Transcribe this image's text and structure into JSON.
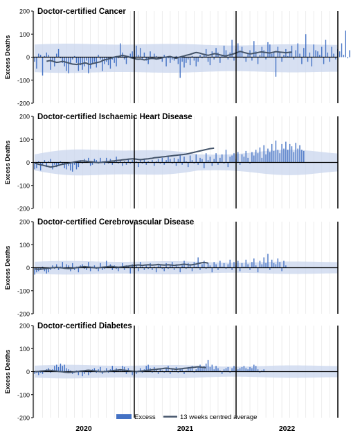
{
  "chart_data": {
    "type": "bar",
    "ylabel": "Excess Deaths",
    "ylim": [
      -200,
      200
    ],
    "yticks": [
      200,
      100,
      0,
      -100,
      -200
    ],
    "x_unit": "week index from first ISO week of 2020 (weeks 1–170 shown)",
    "year_labels": [
      "2020",
      "2021",
      "2022"
    ],
    "legend": {
      "position": "bottom",
      "bar_label": "Excess",
      "line_label": "13 weeks centred average"
    },
    "colors": {
      "bar": "#4472C4",
      "line": "#44546A",
      "band": "#C9D6EE"
    },
    "panels": [
      {
        "title": "Doctor-certified Cancer",
        "series": [
          {
            "name": "Excess",
            "values": [
              -20,
              -50,
              15,
              10,
              -80,
              5,
              20,
              10,
              -55,
              -20,
              -40,
              15,
              35,
              -5,
              -25,
              -40,
              -60,
              -70,
              -30,
              -10,
              5,
              -25,
              -60,
              -35,
              -55,
              -40,
              -15,
              -70,
              -50,
              -30,
              -20,
              -45,
              10,
              -10,
              -60,
              -30,
              -20,
              -35,
              -50,
              -10,
              -25,
              -40,
              -5,
              60,
              20,
              -10,
              -30,
              5,
              15,
              25,
              30,
              50,
              10,
              40,
              -10,
              20,
              -15,
              -30,
              25,
              -5,
              15,
              5,
              -10,
              0,
              -20,
              10,
              -40,
              -5,
              -25,
              -10,
              -15,
              5,
              -30,
              -90,
              -20,
              -45,
              -25,
              -10,
              -35,
              5,
              -15,
              -40,
              -20,
              10,
              -5,
              15,
              35,
              -20,
              -35,
              25,
              -10,
              40,
              20,
              -25,
              10,
              50,
              30,
              -10,
              20,
              75,
              -15,
              35,
              60,
              25,
              45,
              -5,
              -20,
              15,
              30,
              -15,
              70,
              25,
              -30,
              10,
              45,
              30,
              -10,
              65,
              55,
              15,
              20,
              -85,
              45,
              20,
              -20,
              10,
              35,
              5,
              25,
              50,
              -10,
              30,
              60,
              15,
              -30,
              40,
              100,
              -20,
              20,
              -40,
              55,
              30,
              25,
              10,
              45,
              -30,
              75,
              20,
              -20,
              45,
              15,
              -10,
              35,
              25,
              60,
              10,
              115,
              -5,
              30,
              20,
              50,
              65,
              -35,
              15,
              20,
              70,
              40
            ]
          },
          {
            "name": "13 weeks centred average",
            "values": [
              -18,
              -16,
              -15,
              -17,
              -20,
              -23,
              -22,
              -20,
              -18,
              -20,
              -23,
              -25,
              -28,
              -30,
              -31,
              -32,
              -30,
              -30,
              -28,
              -25,
              -26,
              -30,
              -32,
              -28,
              -26,
              -24,
              -22,
              -20,
              -15,
              -12,
              -10,
              -8,
              -5,
              -2,
              0,
              2,
              3,
              5,
              8,
              6,
              4,
              2,
              -2,
              -4,
              -6,
              -8,
              -9,
              -8,
              -10,
              -12,
              -10,
              -8,
              -6,
              -5,
              -6,
              -8,
              -7,
              -5,
              -3,
              -1,
              0,
              2,
              3,
              0,
              -3,
              -5,
              -2,
              1,
              3,
              5,
              8,
              10,
              12,
              15,
              18,
              20,
              19,
              17,
              14,
              12,
              10,
              8,
              10,
              12,
              15,
              14,
              12,
              10,
              8,
              6,
              5,
              8,
              10,
              12,
              15,
              18,
              22,
              25,
              23,
              20,
              18,
              16,
              14,
              15,
              17,
              18,
              20,
              22,
              23,
              21,
              20,
              19,
              18,
              20,
              22,
              24,
              23,
              22,
              21,
              20,
              19,
              20,
              21,
              22
            ]
          }
        ]
      },
      {
        "title": "Doctor-certified Ischaemic Heart Disease",
        "series": [
          {
            "name": "Excess",
            "values": [
              -30,
              -25,
              5,
              -35,
              -15,
              10,
              -20,
              5,
              15,
              -30,
              -10,
              -20,
              -15,
              5,
              -10,
              -25,
              -30,
              -15,
              -35,
              -40,
              -10,
              -30,
              -20,
              10,
              -5,
              15,
              5,
              20,
              -15,
              -10,
              15,
              10,
              -5,
              20,
              5,
              -10,
              20,
              -5,
              15,
              -10,
              5,
              25,
              -5,
              10,
              -15,
              5,
              -10,
              15,
              -5,
              10,
              -5,
              5,
              -20,
              10,
              -5,
              15,
              -10,
              5,
              0,
              10,
              -15,
              5,
              15,
              -5,
              20,
              -10,
              10,
              25,
              15,
              -5,
              20,
              -15,
              15,
              30,
              -10,
              25,
              5,
              -20,
              30,
              10,
              -5,
              35,
              -10,
              20,
              15,
              -25,
              40,
              10,
              25,
              -15,
              15,
              40,
              -10,
              20,
              35,
              -5,
              55,
              -20,
              25,
              30,
              40,
              15,
              45,
              -10,
              35,
              25,
              50,
              20,
              -5,
              45,
              30,
              55,
              40,
              65,
              20,
              75,
              35,
              60,
              45,
              80,
              50,
              95,
              55,
              40,
              80,
              60,
              90,
              55,
              80,
              70,
              45,
              85,
              60,
              75,
              55,
              50
            ]
          },
          {
            "name": "13 weeks centred average",
            "values": [
              -3,
              -5,
              -8,
              -10,
              -12,
              -14,
              -16,
              -18,
              -20,
              -19,
              -17,
              -15,
              -13,
              -10,
              -8,
              -6,
              -5,
              -4,
              -2,
              0,
              2,
              4,
              5,
              6,
              7,
              6,
              5,
              4,
              3,
              2,
              1,
              0,
              -1,
              0,
              1,
              2,
              3,
              4,
              5,
              6,
              7,
              8,
              9,
              10,
              11,
              12,
              13,
              14,
              15,
              16,
              15,
              14,
              13,
              12,
              13,
              14,
              15,
              16,
              17,
              18,
              20,
              21,
              22,
              23,
              24,
              25,
              26,
              27,
              28,
              29,
              30,
              31,
              32,
              33,
              34,
              35,
              36,
              38,
              40,
              42,
              44,
              46,
              48,
              50,
              52,
              54,
              56,
              58,
              60,
              61,
              62
            ]
          }
        ]
      },
      {
        "title": "Doctor-certified Cerebrovascular Disease",
        "series": [
          {
            "name": "Excess",
            "values": [
              -30,
              -20,
              -15,
              -10,
              5,
              -15,
              -25,
              -20,
              -10,
              10,
              -5,
              15,
              -10,
              5,
              25,
              -5,
              15,
              10,
              -15,
              20,
              -10,
              5,
              -20,
              10,
              15,
              -5,
              -10,
              25,
              -15,
              5,
              10,
              -5,
              -15,
              20,
              -10,
              -5,
              30,
              5,
              15,
              -10,
              10,
              -5,
              -15,
              5,
              20,
              -10,
              10,
              5,
              -25,
              15,
              -5,
              10,
              -15,
              25,
              5,
              -10,
              15,
              -5,
              20,
              -10,
              5,
              -20,
              10,
              15,
              -5,
              -15,
              20,
              -5,
              10,
              25,
              -10,
              15,
              5,
              -20,
              10,
              30,
              -5,
              20,
              10,
              -15,
              25,
              5,
              45,
              -10,
              15,
              30,
              -5,
              20,
              10,
              -20,
              25,
              15,
              -10,
              30,
              5,
              20,
              -5,
              15,
              35,
              -10,
              25,
              10,
              30,
              -15,
              20,
              5,
              35,
              15,
              -10,
              25,
              40,
              10,
              -20,
              30,
              15,
              45,
              20,
              60,
              -10,
              35,
              20,
              15,
              40,
              25,
              -15,
              30,
              10
            ]
          },
          {
            "name": "13 weeks centred average",
            "values": [
              -5,
              -6,
              -7,
              -6,
              -5,
              -4,
              -3,
              -2,
              -1,
              0,
              1,
              2,
              1,
              0,
              -1,
              -2,
              -3,
              -4,
              -3,
              -2,
              -1,
              0,
              2,
              3,
              4,
              5,
              4,
              3,
              2,
              1,
              0,
              -1,
              0,
              1,
              2,
              3,
              4,
              5,
              6,
              5,
              4,
              3,
              2,
              3,
              4,
              5,
              6,
              7,
              8,
              9,
              10,
              11,
              12,
              11,
              10,
              11,
              12,
              13,
              12,
              11,
              12,
              13,
              14,
              13,
              12,
              11,
              12,
              13,
              12,
              11,
              10,
              11,
              12,
              13,
              14,
              15,
              14,
              13,
              12,
              13,
              14,
              16,
              18,
              20,
              22,
              23,
              22,
              20
            ]
          }
        ]
      },
      {
        "title": "Doctor-certified Diabetes",
        "series": [
          {
            "name": "Excess",
            "values": [
              -10,
              -5,
              -15,
              -5,
              -10,
              5,
              10,
              15,
              -5,
              10,
              25,
              30,
              20,
              35,
              25,
              30,
              15,
              10,
              5,
              -10,
              -5,
              5,
              -15,
              5,
              -20,
              -10,
              5,
              -15,
              -5,
              10,
              15,
              -5,
              10,
              20,
              -10,
              5,
              15,
              -5,
              10,
              25,
              -5,
              15,
              10,
              5,
              25,
              20,
              -10,
              15,
              5,
              -15,
              -20,
              -10,
              5,
              15,
              -5,
              10,
              25,
              30,
              15,
              -5,
              20,
              10,
              -10,
              15,
              5,
              -5,
              15,
              25,
              -10,
              10,
              5,
              20,
              -5,
              15,
              10,
              -10,
              5,
              20,
              15,
              25,
              -5,
              10,
              20,
              30,
              15,
              25,
              35,
              50,
              20,
              30,
              10,
              25,
              15,
              5,
              -10,
              10,
              15,
              20,
              -5,
              15,
              25,
              20,
              10,
              15,
              20,
              25,
              15,
              10,
              20,
              15,
              30,
              25,
              10,
              -5,
              5,
              10
            ]
          },
          {
            "name": "13 weeks centred average",
            "values": [
              0,
              0,
              1,
              2,
              3,
              4,
              5,
              6,
              5,
              4,
              3,
              2,
              1,
              0,
              -1,
              -2,
              -3,
              -4,
              -3,
              -2,
              -1,
              0,
              1,
              2,
              3,
              4,
              5,
              6,
              5,
              4,
              3,
              2,
              1,
              0,
              -1,
              0,
              1,
              2,
              3,
              4,
              5,
              6,
              7,
              8,
              7,
              6,
              5,
              4,
              3,
              2,
              1,
              0,
              1,
              2,
              3,
              4,
              5,
              6,
              7,
              8,
              9,
              10,
              11,
              12,
              13,
              14,
              15,
              14,
              13,
              12,
              11,
              10,
              11,
              12,
              13,
              14,
              15,
              16,
              17,
              18,
              19,
              20,
              21,
              20,
              19,
              18,
              17
            ]
          }
        ]
      }
    ]
  }
}
